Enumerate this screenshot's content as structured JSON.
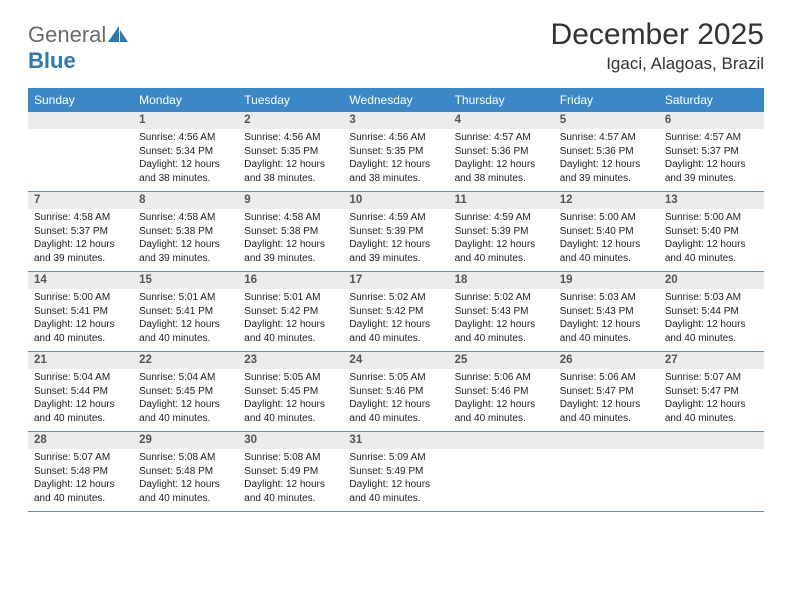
{
  "logo": {
    "general": "General",
    "blue": "Blue"
  },
  "title": "December 2025",
  "location": "Igaci, Alagoas, Brazil",
  "colors": {
    "header_bg": "#3b87c8",
    "row_divider": "#5a8db5",
    "daynum_bg": "#ececec",
    "text": "#333333"
  },
  "weekdays": [
    "Sunday",
    "Monday",
    "Tuesday",
    "Wednesday",
    "Thursday",
    "Friday",
    "Saturday"
  ],
  "first_weekday_index": 1,
  "days": [
    {
      "n": 1,
      "sunrise": "4:56 AM",
      "sunset": "5:34 PM",
      "daylight": "12 hours and 38 minutes."
    },
    {
      "n": 2,
      "sunrise": "4:56 AM",
      "sunset": "5:35 PM",
      "daylight": "12 hours and 38 minutes."
    },
    {
      "n": 3,
      "sunrise": "4:56 AM",
      "sunset": "5:35 PM",
      "daylight": "12 hours and 38 minutes."
    },
    {
      "n": 4,
      "sunrise": "4:57 AM",
      "sunset": "5:36 PM",
      "daylight": "12 hours and 38 minutes."
    },
    {
      "n": 5,
      "sunrise": "4:57 AM",
      "sunset": "5:36 PM",
      "daylight": "12 hours and 39 minutes."
    },
    {
      "n": 6,
      "sunrise": "4:57 AM",
      "sunset": "5:37 PM",
      "daylight": "12 hours and 39 minutes."
    },
    {
      "n": 7,
      "sunrise": "4:58 AM",
      "sunset": "5:37 PM",
      "daylight": "12 hours and 39 minutes."
    },
    {
      "n": 8,
      "sunrise": "4:58 AM",
      "sunset": "5:38 PM",
      "daylight": "12 hours and 39 minutes."
    },
    {
      "n": 9,
      "sunrise": "4:58 AM",
      "sunset": "5:38 PM",
      "daylight": "12 hours and 39 minutes."
    },
    {
      "n": 10,
      "sunrise": "4:59 AM",
      "sunset": "5:39 PM",
      "daylight": "12 hours and 39 minutes."
    },
    {
      "n": 11,
      "sunrise": "4:59 AM",
      "sunset": "5:39 PM",
      "daylight": "12 hours and 40 minutes."
    },
    {
      "n": 12,
      "sunrise": "5:00 AM",
      "sunset": "5:40 PM",
      "daylight": "12 hours and 40 minutes."
    },
    {
      "n": 13,
      "sunrise": "5:00 AM",
      "sunset": "5:40 PM",
      "daylight": "12 hours and 40 minutes."
    },
    {
      "n": 14,
      "sunrise": "5:00 AM",
      "sunset": "5:41 PM",
      "daylight": "12 hours and 40 minutes."
    },
    {
      "n": 15,
      "sunrise": "5:01 AM",
      "sunset": "5:41 PM",
      "daylight": "12 hours and 40 minutes."
    },
    {
      "n": 16,
      "sunrise": "5:01 AM",
      "sunset": "5:42 PM",
      "daylight": "12 hours and 40 minutes."
    },
    {
      "n": 17,
      "sunrise": "5:02 AM",
      "sunset": "5:42 PM",
      "daylight": "12 hours and 40 minutes."
    },
    {
      "n": 18,
      "sunrise": "5:02 AM",
      "sunset": "5:43 PM",
      "daylight": "12 hours and 40 minutes."
    },
    {
      "n": 19,
      "sunrise": "5:03 AM",
      "sunset": "5:43 PM",
      "daylight": "12 hours and 40 minutes."
    },
    {
      "n": 20,
      "sunrise": "5:03 AM",
      "sunset": "5:44 PM",
      "daylight": "12 hours and 40 minutes."
    },
    {
      "n": 21,
      "sunrise": "5:04 AM",
      "sunset": "5:44 PM",
      "daylight": "12 hours and 40 minutes."
    },
    {
      "n": 22,
      "sunrise": "5:04 AM",
      "sunset": "5:45 PM",
      "daylight": "12 hours and 40 minutes."
    },
    {
      "n": 23,
      "sunrise": "5:05 AM",
      "sunset": "5:45 PM",
      "daylight": "12 hours and 40 minutes."
    },
    {
      "n": 24,
      "sunrise": "5:05 AM",
      "sunset": "5:46 PM",
      "daylight": "12 hours and 40 minutes."
    },
    {
      "n": 25,
      "sunrise": "5:06 AM",
      "sunset": "5:46 PM",
      "daylight": "12 hours and 40 minutes."
    },
    {
      "n": 26,
      "sunrise": "5:06 AM",
      "sunset": "5:47 PM",
      "daylight": "12 hours and 40 minutes."
    },
    {
      "n": 27,
      "sunrise": "5:07 AM",
      "sunset": "5:47 PM",
      "daylight": "12 hours and 40 minutes."
    },
    {
      "n": 28,
      "sunrise": "5:07 AM",
      "sunset": "5:48 PM",
      "daylight": "12 hours and 40 minutes."
    },
    {
      "n": 29,
      "sunrise": "5:08 AM",
      "sunset": "5:48 PM",
      "daylight": "12 hours and 40 minutes."
    },
    {
      "n": 30,
      "sunrise": "5:08 AM",
      "sunset": "5:49 PM",
      "daylight": "12 hours and 40 minutes."
    },
    {
      "n": 31,
      "sunrise": "5:09 AM",
      "sunset": "5:49 PM",
      "daylight": "12 hours and 40 minutes."
    }
  ],
  "labels": {
    "sunrise": "Sunrise:",
    "sunset": "Sunset:",
    "daylight": "Daylight:"
  }
}
